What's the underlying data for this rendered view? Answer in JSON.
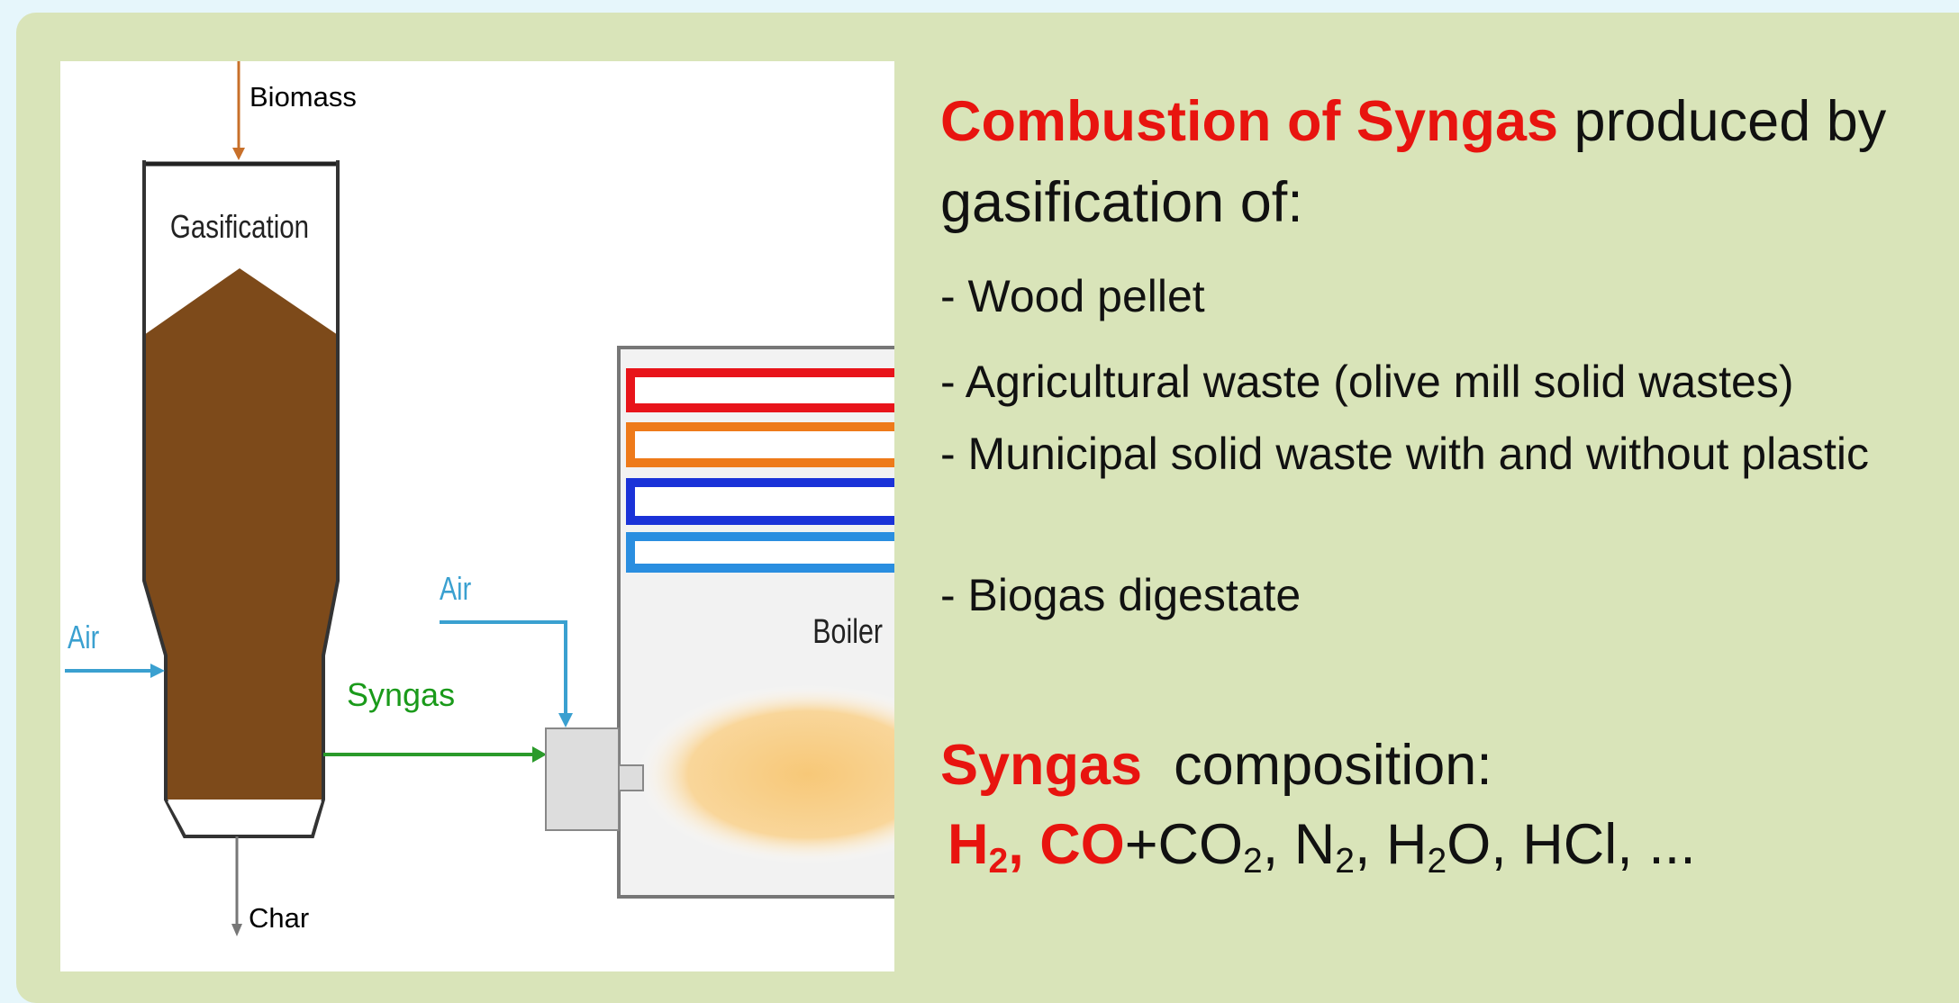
{
  "diagram": {
    "labels": {
      "biomass": "Biomass",
      "gasification": "Gasification",
      "air_left": "Air",
      "air_right": "Air",
      "syngas": "Syngas",
      "boiler": "Boiler",
      "char": "Char"
    }
  },
  "text": {
    "heading": {
      "highlight": "Combustion of Syngas",
      "rest": " produced by gasification of:"
    },
    "items": [
      "- Wood pellet",
      "- Agricultural waste (olive mill solid wastes)",
      "- Municipal solid waste with and without plastic",
      "- Biogas digestate"
    ],
    "composition": {
      "highlight": "Syngas",
      "rest": "  composition:",
      "formula": [
        {
          "text": "H",
          "sub": "2",
          "highlight": true
        },
        {
          "text": ", CO",
          "highlight": true
        },
        {
          "text": "+CO",
          "sub": "2"
        },
        {
          "text": ", N",
          "sub": "2"
        },
        {
          "text": ", H",
          "sub": "2"
        },
        {
          "text": "O, HCl, ..."
        }
      ]
    }
  }
}
